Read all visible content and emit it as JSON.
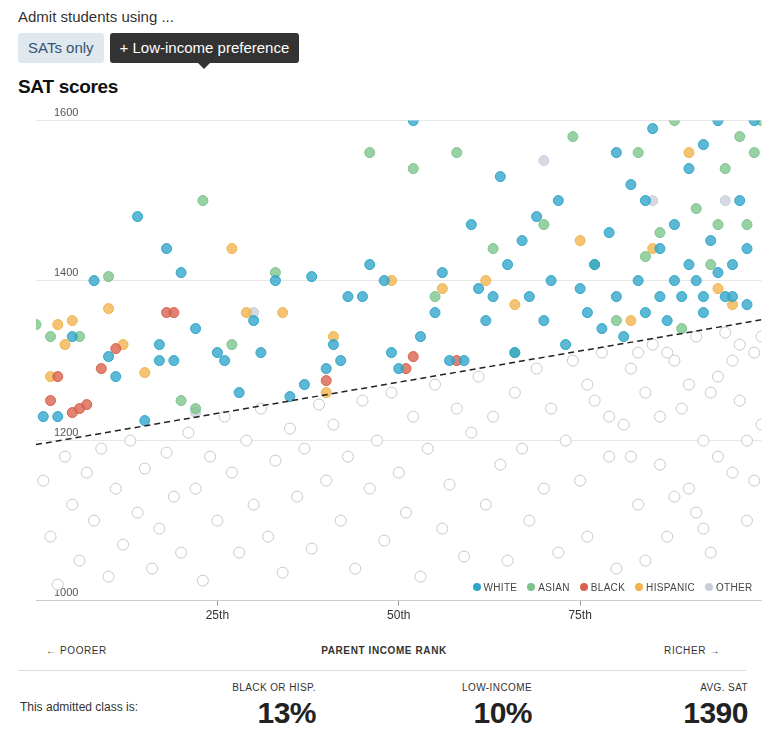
{
  "header": {
    "text": "Admit students using ...",
    "buttons": [
      {
        "label": "SATs only"
      },
      {
        "label": "+ Low-income preference",
        "selected": true
      }
    ]
  },
  "chart_data": {
    "type": "scatter",
    "title": "SAT scores",
    "xlabel": "PARENT INCOME RANK",
    "x_ends": [
      "← POORER",
      "RICHER →"
    ],
    "xlim": [
      0,
      100
    ],
    "xticks": [
      {
        "value": 25,
        "label": "25th"
      },
      {
        "value": 50,
        "label": "50th"
      },
      {
        "value": 75,
        "label": "75th"
      }
    ],
    "ylim": [
      1000,
      1600
    ],
    "yticks": [
      1000,
      1200,
      1400,
      1600
    ],
    "grid": true,
    "legend": "bottom right",
    "series": [
      {
        "color": "#c8c8c8",
        "marker": "open",
        "points": [
          [
            1,
            1150
          ],
          [
            2,
            1080
          ],
          [
            3,
            1020
          ],
          [
            4,
            1180
          ],
          [
            5,
            1120
          ],
          [
            6,
            1050
          ],
          [
            7,
            1160
          ],
          [
            8,
            1100
          ],
          [
            9,
            1190
          ],
          [
            10,
            1030
          ],
          [
            11,
            1140
          ],
          [
            12,
            1070
          ],
          [
            13,
            1200
          ],
          [
            14,
            1110
          ],
          [
            15,
            1165
          ],
          [
            16,
            1040
          ],
          [
            17,
            1090
          ],
          [
            18,
            1185
          ],
          [
            19,
            1130
          ],
          [
            20,
            1060
          ],
          [
            21,
            1210
          ],
          [
            22,
            1140
          ],
          [
            23,
            1025
          ],
          [
            24,
            1180
          ],
          [
            25,
            1100
          ],
          [
            26,
            1230
          ],
          [
            27,
            1160
          ],
          [
            28,
            1060
          ],
          [
            29,
            1200
          ],
          [
            30,
            1120
          ],
          [
            31,
            1240
          ],
          [
            32,
            1080
          ],
          [
            33,
            1175
          ],
          [
            34,
            1035
          ],
          [
            35,
            1215
          ],
          [
            36,
            1130
          ],
          [
            37,
            1190
          ],
          [
            38,
            1065
          ],
          [
            39,
            1245
          ],
          [
            40,
            1150
          ],
          [
            41,
            1220
          ],
          [
            42,
            1100
          ],
          [
            43,
            1180
          ],
          [
            44,
            1040
          ],
          [
            45,
            1250
          ],
          [
            46,
            1140
          ],
          [
            47,
            1200
          ],
          [
            48,
            1075
          ],
          [
            49,
            1260
          ],
          [
            50,
            1160
          ],
          [
            51,
            1110
          ],
          [
            52,
            1230
          ],
          [
            53,
            1030
          ],
          [
            54,
            1190
          ],
          [
            55,
            1270
          ],
          [
            56,
            1090
          ],
          [
            57,
            1145
          ],
          [
            58,
            1240
          ],
          [
            59,
            1055
          ],
          [
            60,
            1210
          ],
          [
            61,
            1280
          ],
          [
            62,
            1120
          ],
          [
            63,
            1230
          ],
          [
            64,
            1170
          ],
          [
            65,
            1050
          ],
          [
            66,
            1260
          ],
          [
            67,
            1190
          ],
          [
            68,
            1100
          ],
          [
            69,
            1290
          ],
          [
            70,
            1140
          ],
          [
            71,
            1240
          ],
          [
            72,
            1060
          ],
          [
            73,
            1200
          ],
          [
            74,
            1300
          ],
          [
            75,
            1150
          ],
          [
            76,
            1080
          ],
          [
            77,
            1250
          ],
          [
            78,
            1310
          ],
          [
            79,
            1180
          ],
          [
            80,
            1040
          ],
          [
            81,
            1220
          ],
          [
            82,
            1290
          ],
          [
            83,
            1120
          ],
          [
            84,
            1260
          ],
          [
            85,
            1320
          ],
          [
            86,
            1170
          ],
          [
            87,
            1080
          ],
          [
            88,
            1300
          ],
          [
            89,
            1240
          ],
          [
            90,
            1140
          ],
          [
            91,
            1330
          ],
          [
            92,
            1200
          ],
          [
            93,
            1060
          ],
          [
            94,
            1280
          ],
          [
            95,
            1335
          ],
          [
            96,
            1160
          ],
          [
            97,
            1250
          ],
          [
            98,
            1100
          ],
          [
            99,
            1310
          ],
          [
            100,
            1220
          ],
          [
            82,
            1180
          ],
          [
            84,
            1050
          ],
          [
            86,
            1230
          ],
          [
            88,
            1130
          ],
          [
            90,
            1270
          ],
          [
            92,
            1090
          ],
          [
            94,
            1180
          ],
          [
            96,
            1300
          ],
          [
            98,
            1200
          ],
          [
            100,
            1330
          ],
          [
            76,
            1270
          ],
          [
            79,
            1230
          ],
          [
            83,
            1310
          ],
          [
            87,
            1310
          ],
          [
            91,
            1110
          ],
          [
            93,
            1260
          ],
          [
            97,
            1320
          ],
          [
            99,
            1150
          ]
        ]
      },
      {
        "name": "WHITE",
        "color": "#2fa5c9",
        "marker": "circle",
        "points": [
          [
            1,
            1230
          ],
          [
            3,
            1230
          ],
          [
            5,
            1330
          ],
          [
            8,
            1400
          ],
          [
            10,
            1305
          ],
          [
            11,
            1280
          ],
          [
            14,
            1480
          ],
          [
            15,
            1225
          ],
          [
            17,
            1320
          ],
          [
            17,
            1300
          ],
          [
            18,
            1440
          ],
          [
            20,
            1410
          ],
          [
            19,
            1300
          ],
          [
            22,
            1340
          ],
          [
            25,
            1310
          ],
          [
            26,
            1300
          ],
          [
            28,
            1260
          ],
          [
            30,
            1350
          ],
          [
            31,
            1310
          ],
          [
            33,
            1400
          ],
          [
            35,
            1255
          ],
          [
            37,
            1270
          ],
          [
            38,
            1405
          ],
          [
            40,
            1290
          ],
          [
            41,
            1320
          ],
          [
            42,
            1300
          ],
          [
            43,
            1380
          ],
          [
            45,
            1380
          ],
          [
            46,
            1420
          ],
          [
            48,
            1400
          ],
          [
            49,
            1310
          ],
          [
            50,
            1290
          ],
          [
            52,
            1600
          ],
          [
            53,
            1330
          ],
          [
            55,
            1360
          ],
          [
            56,
            1410
          ],
          [
            57,
            1300
          ],
          [
            59,
            1300
          ],
          [
            60,
            1470
          ],
          [
            61,
            1390
          ],
          [
            62,
            1350
          ],
          [
            63,
            1380
          ],
          [
            64,
            1530
          ],
          [
            65,
            1420
          ],
          [
            66,
            1310
          ],
          [
            67,
            1450
          ],
          [
            68,
            1380
          ],
          [
            69,
            1480
          ],
          [
            70,
            1350
          ],
          [
            71,
            1400
          ],
          [
            72,
            1500
          ],
          [
            73,
            1320
          ],
          [
            75,
            1390
          ],
          [
            76,
            1360
          ],
          [
            77,
            1420
          ],
          [
            78,
            1340
          ],
          [
            79,
            1460
          ],
          [
            80,
            1380
          ],
          [
            81,
            1330
          ],
          [
            82,
            1520
          ],
          [
            83,
            1400
          ],
          [
            84,
            1360
          ],
          [
            85,
            1590
          ],
          [
            86,
            1440
          ],
          [
            87,
            1350
          ],
          [
            88,
            1470
          ],
          [
            89,
            1380
          ],
          [
            90,
            1540
          ],
          [
            91,
            1400
          ],
          [
            92,
            1360
          ],
          [
            93,
            1450
          ],
          [
            94,
            1600
          ],
          [
            95,
            1380
          ],
          [
            96,
            1420
          ],
          [
            97,
            1500
          ],
          [
            98,
            1370
          ],
          [
            99,
            1600
          ],
          [
            86,
            1380
          ],
          [
            88,
            1400
          ],
          [
            90,
            1420
          ],
          [
            92,
            1380
          ],
          [
            94,
            1410
          ],
          [
            96,
            1380
          ],
          [
            98,
            1440
          ],
          [
            80,
            1560
          ],
          [
            84,
            1500
          ],
          [
            92,
            1570
          ]
        ]
      },
      {
        "name": "ASIAN",
        "color": "#7cc48a",
        "marker": "circle",
        "points": [
          [
            0,
            1345
          ],
          [
            2,
            1330
          ],
          [
            6,
            1330
          ],
          [
            10,
            1405
          ],
          [
            20,
            1250
          ],
          [
            22,
            1240
          ],
          [
            23,
            1500
          ],
          [
            27,
            1320
          ],
          [
            33,
            1410
          ],
          [
            46,
            1560
          ],
          [
            52,
            1540
          ],
          [
            55,
            1380
          ],
          [
            58,
            1560
          ],
          [
            63,
            1440
          ],
          [
            66,
            1310
          ],
          [
            70,
            1470
          ],
          [
            74,
            1580
          ],
          [
            77,
            1420
          ],
          [
            80,
            1350
          ],
          [
            83,
            1560
          ],
          [
            86,
            1460
          ],
          [
            89,
            1340
          ],
          [
            91,
            1490
          ],
          [
            93,
            1420
          ],
          [
            95,
            1540
          ],
          [
            97,
            1580
          ],
          [
            99,
            1560
          ],
          [
            100,
            1600
          ],
          [
            88,
            1600
          ],
          [
            94,
            1470
          ],
          [
            98,
            1470
          ],
          [
            84,
            1430
          ]
        ]
      },
      {
        "name": "BLACK",
        "color": "#d9614c",
        "marker": "circle",
        "points": [
          [
            2,
            1250
          ],
          [
            3,
            1280
          ],
          [
            5,
            1235
          ],
          [
            6,
            1240
          ],
          [
            7,
            1245
          ],
          [
            9,
            1290
          ],
          [
            11,
            1315
          ],
          [
            18,
            1360
          ],
          [
            19,
            1360
          ],
          [
            40,
            1275
          ],
          [
            51,
            1290
          ],
          [
            52,
            1305
          ],
          [
            58,
            1300
          ]
        ]
      },
      {
        "name": "HISPANIC",
        "color": "#f1b34c",
        "marker": "circle",
        "points": [
          [
            2,
            1280
          ],
          [
            3,
            1345
          ],
          [
            4,
            1320
          ],
          [
            5,
            1350
          ],
          [
            10,
            1365
          ],
          [
            12,
            1320
          ],
          [
            15,
            1285
          ],
          [
            27,
            1440
          ],
          [
            29,
            1360
          ],
          [
            34,
            1360
          ],
          [
            40,
            1260
          ],
          [
            41,
            1330
          ],
          [
            49,
            1400
          ],
          [
            56,
            1390
          ],
          [
            62,
            1400
          ],
          [
            66,
            1370
          ],
          [
            75,
            1450
          ],
          [
            82,
            1350
          ],
          [
            85,
            1440
          ],
          [
            90,
            1560
          ],
          [
            94,
            1390
          ],
          [
            96,
            1370
          ]
        ]
      },
      {
        "name": "OTHER",
        "color": "#c9cedb",
        "marker": "circle",
        "points": [
          [
            22,
            1235
          ],
          [
            30,
            1360
          ],
          [
            70,
            1550
          ],
          [
            85,
            1500
          ],
          [
            95,
            1500
          ]
        ]
      },
      {
        "type": "line",
        "line_style": "dashed",
        "color": "#222222",
        "points": [
          [
            0,
            1195
          ],
          [
            100,
            1351
          ]
        ]
      }
    ]
  },
  "summary": {
    "label": "This admitted class is:",
    "items": [
      {
        "label": "BLACK OR HISP.",
        "value": "13%"
      },
      {
        "label": "LOW-INCOME",
        "value": "10%"
      },
      {
        "label": "AVG. SAT",
        "value": "1390"
      }
    ]
  }
}
